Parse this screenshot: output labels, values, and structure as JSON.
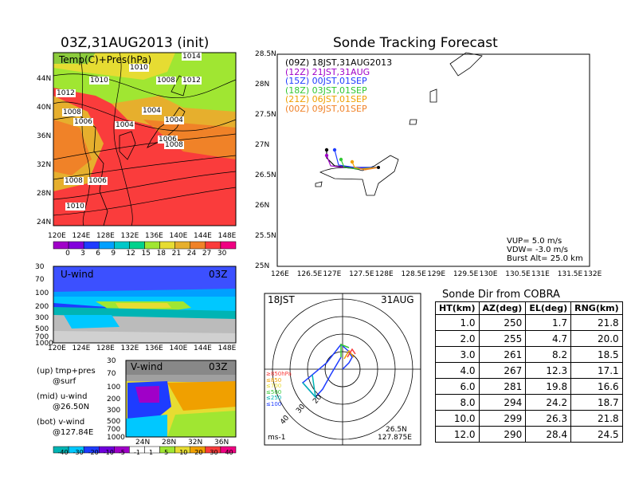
{
  "left_title": "03Z,31AUG2013 (init)",
  "right_title": "Sonde Tracking Forecast",
  "map_top": {
    "label": "Temp(C)+Pres(hPa)",
    "lat_ticks": [
      "44N",
      "40N",
      "36N",
      "32N",
      "28N",
      "24N"
    ],
    "lon_ticks": [
      "120E",
      "124E",
      "128E",
      "132E",
      "136E",
      "140E",
      "144E",
      "148E"
    ],
    "isobar_labels": [
      "1014",
      "1010",
      "1010",
      "1008",
      "1012",
      "1012",
      "1008",
      "1004",
      "1006",
      "1004",
      "1006",
      "1008",
      "1004",
      "1008",
      "1006",
      "1010"
    ]
  },
  "temp_colorbar": {
    "labels": [
      "0",
      "3",
      "6",
      "9",
      "12",
      "15",
      "18",
      "21",
      "24",
      "27",
      "30"
    ],
    "colors": [
      "#a000c8",
      "#8200dc",
      "#1e3cff",
      "#00a0ff",
      "#00c8c8",
      "#00d28c",
      "#a0e632",
      "#e6dc32",
      "#e6af2d",
      "#f08228",
      "#fa3c3c",
      "#f00082"
    ]
  },
  "uwind": {
    "label": "U-wind",
    "time": "03Z",
    "p_ticks": [
      "30",
      "70",
      "100",
      "200",
      "300",
      "500",
      "700",
      "1000"
    ],
    "lon_ticks": [
      "120E",
      "124E",
      "128E",
      "132E",
      "136E",
      "140E",
      "144E",
      "148E"
    ]
  },
  "vwind": {
    "label": "V-wind",
    "time": "03Z",
    "p_ticks": [
      "30",
      "70",
      "100",
      "200",
      "300",
      "500",
      "700",
      "1000"
    ],
    "lat_ticks": [
      "24N",
      "28N",
      "32N",
      "36N"
    ]
  },
  "wind_colorbar": {
    "labels": [
      "-40",
      "-30",
      "-20",
      "-10",
      "-5",
      "-1",
      "1",
      "5",
      "10",
      "20",
      "30",
      "40"
    ],
    "colors": [
      "#00b4b4",
      "#00c8ff",
      "#1e3cff",
      "#6e00dc",
      "#a000c8",
      "#ffffff",
      "#ffffff",
      "#a0e632",
      "#e6dc32",
      "#f0a000",
      "#fa3c3c",
      "#f00082"
    ]
  },
  "legend_notes": [
    {
      "line1": "(up) tmp+pres",
      "line2": "@surf"
    },
    {
      "line1": "(mid) u-wind",
      "line2": "@26.50N"
    },
    {
      "line1": "(bot) v-wind",
      "line2": "@127.84E"
    }
  ],
  "track_map": {
    "lat_ticks": [
      "28.5N",
      "28N",
      "27.5N",
      "27N",
      "26.5N",
      "26N",
      "25.5N",
      "25N"
    ],
    "lon_ticks": [
      "126E",
      "126.5E",
      "127E",
      "127.5E",
      "128E",
      "128.5E",
      "129E",
      "129.5E",
      "130E",
      "130.5E",
      "131E",
      "131.5E",
      "132E"
    ],
    "legend": [
      {
        "text": "(09Z)  18JST,31AUG2013",
        "color": "#000000"
      },
      {
        "text": "(12Z)  21JST,31AUG",
        "color": "#a000c8"
      },
      {
        "text": "(15Z)  00JST,01SEP",
        "color": "#1e3cff"
      },
      {
        "text": "(18Z)  03JST,01SEP",
        "color": "#32c832"
      },
      {
        "text": "(21Z)  06JST,01SEP",
        "color": "#f0a000"
      },
      {
        "text": "(00Z)  09JST,01SEP",
        "color": "#f08228"
      }
    ],
    "params": [
      "VUP=  5.0  m/s",
      "VDW=  -3.0  m/s",
      "Burst Alt=  25.0  km"
    ]
  },
  "polar": {
    "time": "18JST",
    "date": "31AUG",
    "loc1": "26.5N",
    "loc2": "127.875E",
    "unit": "ms-1",
    "ring_labels": [
      "20",
      "30",
      "40"
    ],
    "level_legend": [
      {
        "text": "≥850hPa",
        "color": "#fa3c3c"
      },
      {
        "text": "≤850",
        "color": "#f0a000"
      },
      {
        "text": "≤700",
        "color": "#e6dc32"
      },
      {
        "text": "≤500",
        "color": "#32c832"
      },
      {
        "text": "≤250",
        "color": "#00b4b4"
      },
      {
        "text": "≤100",
        "color": "#1e3cff"
      }
    ]
  },
  "sonde_table": {
    "title": "Sonde Dir from COBRA",
    "headers": [
      "HT(km)",
      "AZ(deg)",
      "EL(deg)",
      "RNG(km)"
    ],
    "rows": [
      [
        "1.0",
        "250",
        "1.7",
        "21.8"
      ],
      [
        "2.0",
        "255",
        "4.7",
        "20.0"
      ],
      [
        "3.0",
        "261",
        "8.2",
        "18.5"
      ],
      [
        "4.0",
        "267",
        "12.3",
        "17.1"
      ],
      [
        "6.0",
        "281",
        "19.8",
        "16.6"
      ],
      [
        "8.0",
        "294",
        "24.2",
        "18.7"
      ],
      [
        "10.0",
        "299",
        "26.3",
        "21.8"
      ],
      [
        "12.0",
        "290",
        "28.4",
        "24.5"
      ]
    ]
  },
  "chart_data": {
    "type": "table",
    "title": "Sonde Dir from COBRA",
    "columns": [
      "HT(km)",
      "AZ(deg)",
      "EL(deg)",
      "RNG(km)"
    ],
    "rows": [
      [
        1.0,
        250,
        1.7,
        21.8
      ],
      [
        2.0,
        255,
        4.7,
        20.0
      ],
      [
        3.0,
        261,
        8.2,
        18.5
      ],
      [
        4.0,
        267,
        12.3,
        17.1
      ],
      [
        6.0,
        281,
        19.8,
        16.6
      ],
      [
        8.0,
        294,
        24.2,
        18.7
      ],
      [
        10.0,
        299,
        26.3,
        21.8
      ],
      [
        12.0,
        290,
        28.4,
        24.5
      ]
    ]
  }
}
